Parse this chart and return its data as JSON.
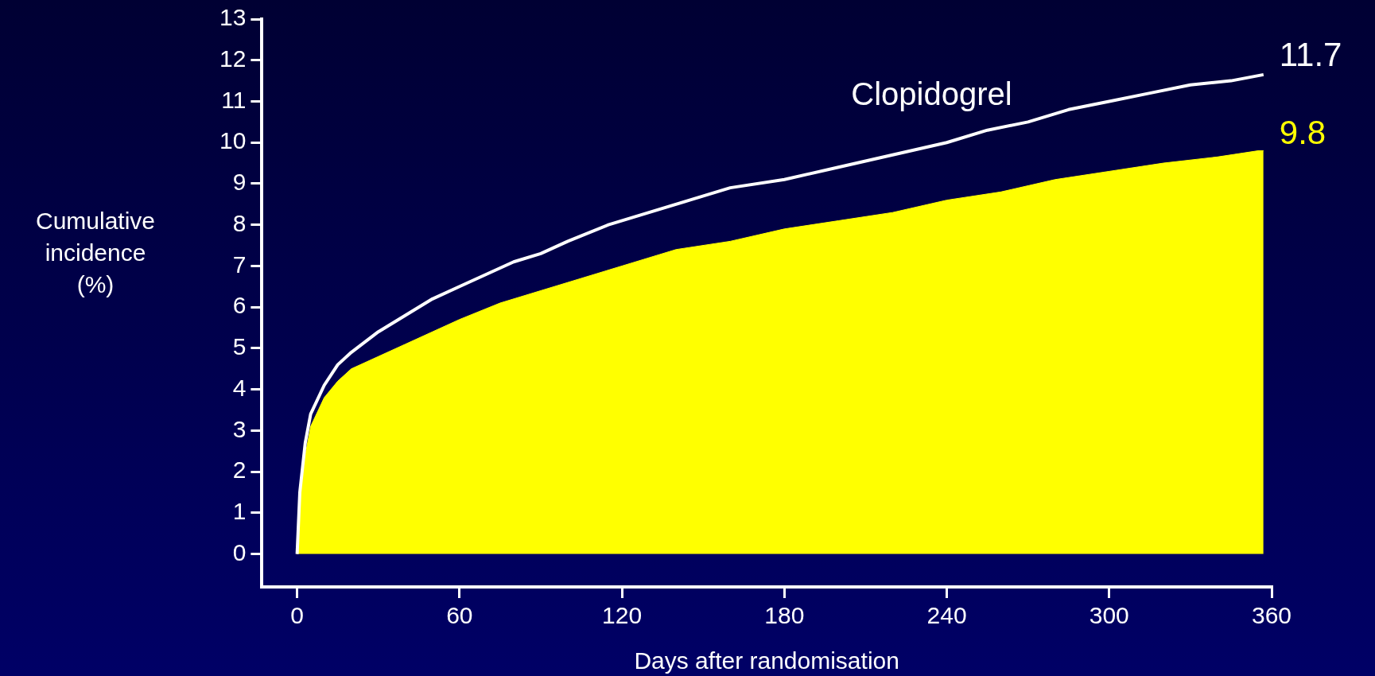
{
  "chart_data": {
    "type": "line",
    "xlabel": "Days after randomisation",
    "ylabel": "Cumulative incidence (%)",
    "xlim": [
      -13,
      360
    ],
    "xticks": [
      0,
      60,
      120,
      180,
      240,
      300,
      360
    ],
    "ylim": [
      -0.8,
      13
    ],
    "yticks": [
      0,
      1,
      2,
      3,
      4,
      5,
      6,
      7,
      8,
      9,
      10,
      11,
      12,
      13
    ],
    "grid": false,
    "legend": false,
    "marker": "none",
    "series": [
      {
        "name": "Clopidogrel",
        "color": "#ffffff",
        "type": "line",
        "x": [
          0,
          1,
          3,
          5,
          10,
          15,
          20,
          30,
          40,
          50,
          60,
          70,
          80,
          90,
          100,
          115,
          130,
          145,
          160,
          180,
          200,
          220,
          240,
          255,
          270,
          285,
          300,
          315,
          330,
          345,
          357
        ],
        "values": [
          0,
          1.5,
          2.7,
          3.4,
          4.1,
          4.6,
          4.9,
          5.4,
          5.8,
          6.2,
          6.5,
          6.8,
          7.1,
          7.3,
          7.6,
          8.0,
          8.3,
          8.6,
          8.9,
          9.1,
          9.4,
          9.7,
          10.0,
          10.3,
          10.5,
          10.8,
          11.0,
          11.2,
          11.4,
          11.5,
          11.65
        ]
      },
      {
        "color": "#ffff00",
        "type": "area",
        "x": [
          0,
          1,
          3,
          5,
          10,
          15,
          20,
          30,
          40,
          50,
          60,
          75,
          90,
          105,
          120,
          140,
          160,
          180,
          200,
          220,
          240,
          260,
          280,
          300,
          320,
          340,
          355,
          357
        ],
        "values": [
          0,
          1.3,
          2.4,
          3.1,
          3.8,
          4.2,
          4.5,
          4.8,
          5.1,
          5.4,
          5.7,
          6.1,
          6.4,
          6.7,
          7.0,
          7.4,
          7.6,
          7.9,
          8.1,
          8.3,
          8.6,
          8.8,
          9.1,
          9.3,
          9.5,
          9.65,
          9.8,
          9.8
        ]
      }
    ],
    "annotations": [
      {
        "text": "11.7",
        "x": 357,
        "y": 11.7
      },
      {
        "text": "9.8",
        "x": 357,
        "y": 9.8
      }
    ]
  }
}
